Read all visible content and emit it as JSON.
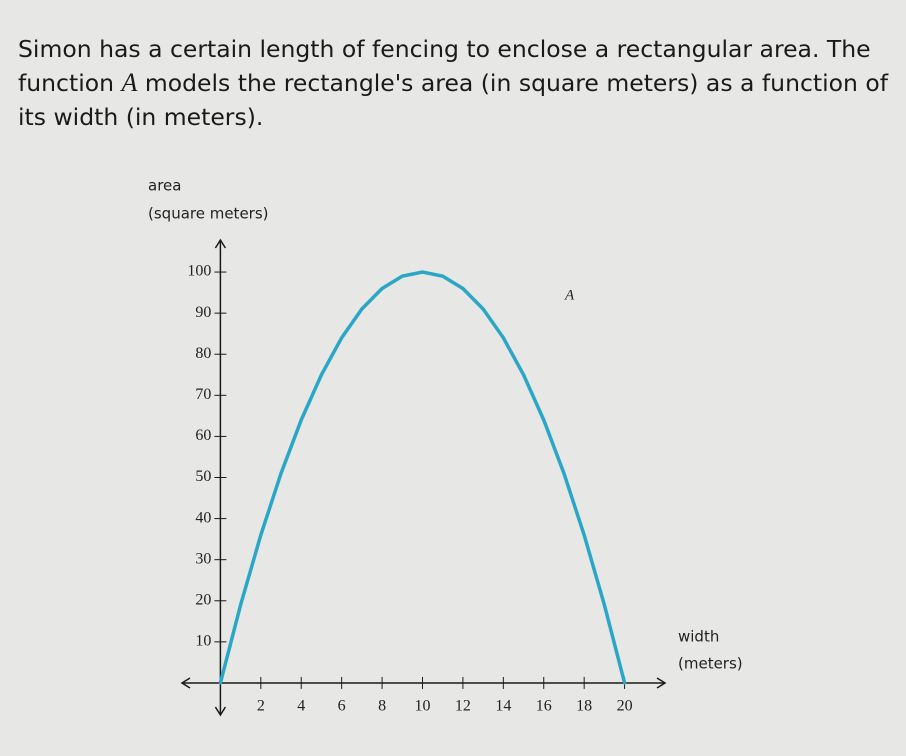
{
  "problem": {
    "before": "Simon has a certain length of fencing to enclose a rectangular area. The function",
    "variable": "A",
    "after": "models the rectangle's area (in square meters) as a function of its width (in meters)."
  },
  "chart_data": {
    "type": "line",
    "ylabel": [
      "area",
      "(square meters)"
    ],
    "xlabel": [
      "width",
      "(meters)"
    ],
    "x": [
      0,
      1,
      2,
      3,
      4,
      5,
      6,
      7,
      8,
      9,
      10,
      11,
      12,
      13,
      14,
      15,
      16,
      17,
      18,
      19,
      20
    ],
    "series": [
      {
        "name": "A",
        "color": "#2aa6c6",
        "values": [
          0,
          19,
          36,
          51,
          64,
          75,
          84,
          91,
          96,
          99,
          100,
          99,
          96,
          91,
          84,
          75,
          64,
          51,
          36,
          19,
          0
        ]
      }
    ],
    "xlim": [
      -1.9,
      22
    ],
    "ylim": [
      -7.8,
      107.8
    ],
    "xticks": [
      2,
      4,
      6,
      8,
      10,
      12,
      14,
      16,
      18,
      20
    ],
    "yticks": [
      10,
      20,
      30,
      40,
      50,
      60,
      70,
      80,
      90,
      100
    ]
  }
}
